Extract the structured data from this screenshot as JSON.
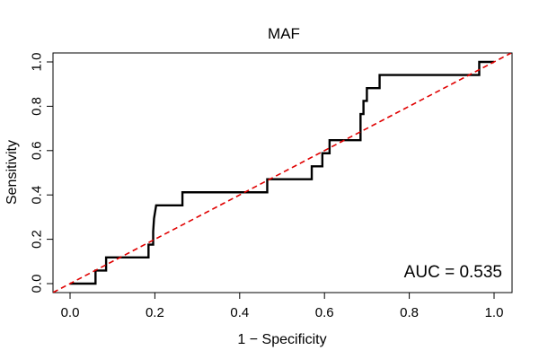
{
  "chart_data": {
    "type": "line",
    "title": "MAF",
    "xlabel": "1 − Specificity",
    "ylabel": "Sensitivity",
    "xlim": [
      0,
      1
    ],
    "ylim": [
      0,
      1
    ],
    "x_ticks": [
      0.0,
      0.2,
      0.4,
      0.6,
      0.8,
      1.0
    ],
    "x_tick_labels": [
      "0.0",
      "0.2",
      "0.4",
      "0.6",
      "0.8",
      "1.0"
    ],
    "y_ticks": [
      0.0,
      0.2,
      0.4,
      0.6,
      0.8,
      1.0
    ],
    "y_tick_labels": [
      "0.0",
      "0.2",
      "0.4",
      "0.6",
      "0.8",
      "1.0"
    ],
    "grid": false,
    "annotation": "AUC = 0.535",
    "series": [
      {
        "color": "#000000",
        "style": "solid-step",
        "points": [
          [
            0.0,
            0.0
          ],
          [
            0.06,
            0.0
          ],
          [
            0.06,
            0.059
          ],
          [
            0.085,
            0.059
          ],
          [
            0.085,
            0.118
          ],
          [
            0.185,
            0.118
          ],
          [
            0.185,
            0.176
          ],
          [
            0.196,
            0.176
          ],
          [
            0.196,
            0.235
          ],
          [
            0.198,
            0.294
          ],
          [
            0.203,
            0.353
          ],
          [
            0.265,
            0.353
          ],
          [
            0.265,
            0.412
          ],
          [
            0.465,
            0.412
          ],
          [
            0.465,
            0.471
          ],
          [
            0.57,
            0.471
          ],
          [
            0.57,
            0.529
          ],
          [
            0.595,
            0.529
          ],
          [
            0.595,
            0.588
          ],
          [
            0.612,
            0.588
          ],
          [
            0.612,
            0.647
          ],
          [
            0.685,
            0.647
          ],
          [
            0.685,
            0.765
          ],
          [
            0.692,
            0.765
          ],
          [
            0.692,
            0.824
          ],
          [
            0.7,
            0.824
          ],
          [
            0.7,
            0.882
          ],
          [
            0.73,
            0.882
          ],
          [
            0.73,
            0.941
          ],
          [
            0.965,
            0.941
          ],
          [
            0.965,
            1.0
          ],
          [
            1.0,
            1.0
          ]
        ]
      },
      {
        "color": "#e00000",
        "style": "dashed",
        "points": [
          [
            -0.04,
            -0.04
          ],
          [
            1.04,
            1.04
          ]
        ]
      }
    ]
  }
}
